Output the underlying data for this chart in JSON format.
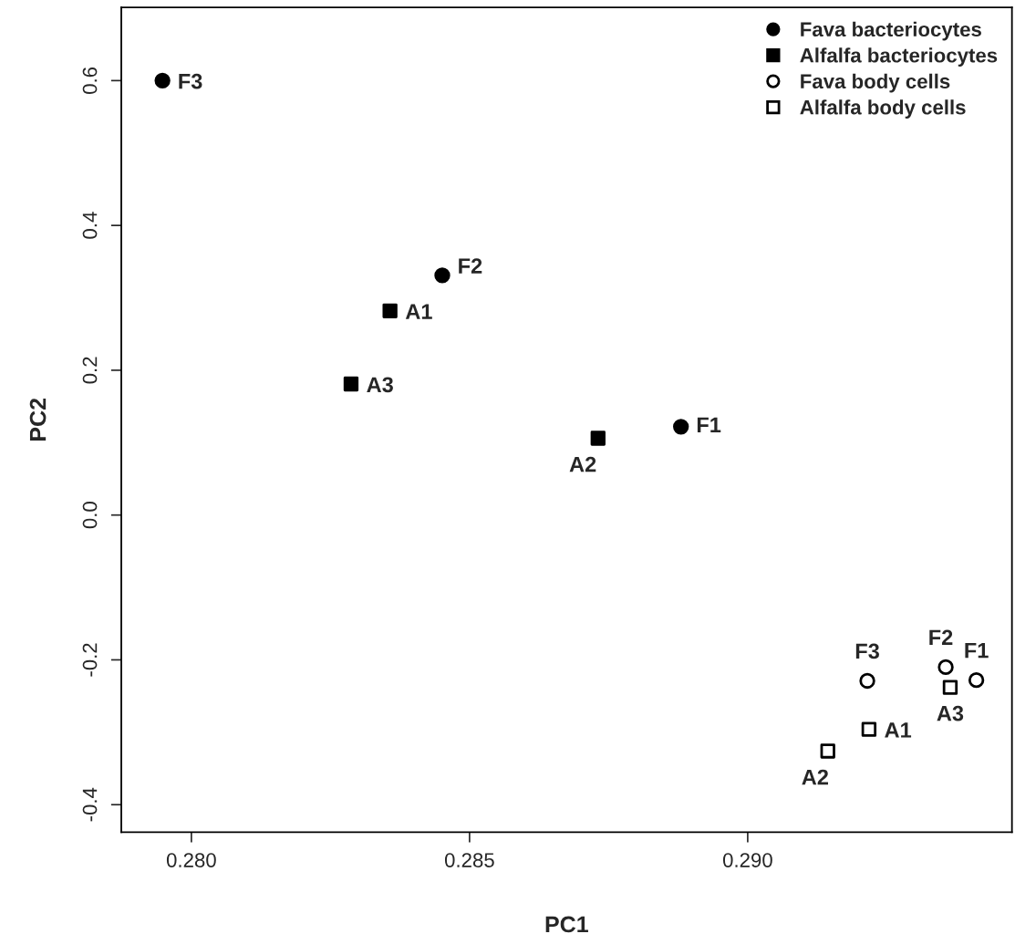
{
  "chart_data": {
    "type": "scatter",
    "xlabel": "PC1",
    "ylabel": "PC2",
    "xlim": [
      0.27874,
      0.29475
    ],
    "ylim": [
      -0.438,
      0.701
    ],
    "xticks": [
      {
        "value": 0.28,
        "label": "0.280"
      },
      {
        "value": 0.285,
        "label": "0.285"
      },
      {
        "value": 0.29,
        "label": "0.290"
      }
    ],
    "yticks": [
      -0.4,
      -0.2,
      {
        "value": 0,
        "label": "0.0"
      },
      0.2,
      0.4,
      0.6
    ],
    "grid": false,
    "legend": "top right",
    "series": [
      {
        "name": "Fava bacteriocytes",
        "color": "#000000",
        "marker": "circle",
        "x": [
          0.2888,
          0.28451,
          0.27948
        ],
        "values": [
          0.122,
          0.331,
          0.6
        ]
      },
      {
        "name": "Alfalfa bacteriocytes",
        "color": "#000000",
        "marker": "square",
        "x": [
          0.28357,
          0.28731,
          0.28287
        ],
        "values": [
          0.282,
          0.106,
          0.181
        ]
      },
      {
        "name": "Fava body cells",
        "color": "#000000",
        "marker": "circle",
        "x": [
          0.29411,
          0.29356,
          0.29215
        ],
        "values": [
          -0.228,
          -0.21,
          -0.229
        ]
      },
      {
        "name": "Alfalfa body cells",
        "color": "#000000",
        "marker": "square",
        "x": [
          0.29218,
          0.29144,
          0.29364
        ],
        "values": [
          -0.296,
          -0.326,
          -0.238
        ]
      }
    ],
    "annotations": [
      {
        "text": "F1",
        "x": 0.2888,
        "y": 0.122
      },
      {
        "text": "F2",
        "x": 0.28451,
        "y": 0.331
      },
      {
        "text": "F3",
        "x": 0.27948,
        "y": 0.6
      },
      {
        "text": "A1",
        "x": 0.28357,
        "y": 0.282
      },
      {
        "text": "A2",
        "x": 0.28731,
        "y": 0.106
      },
      {
        "text": "A3",
        "x": 0.28287,
        "y": 0.181
      },
      {
        "text": "F1",
        "x": 0.29411,
        "y": -0.228
      },
      {
        "text": "F2",
        "x": 0.29356,
        "y": -0.21
      },
      {
        "text": "F3",
        "x": 0.29215,
        "y": -0.229
      },
      {
        "text": "A1",
        "x": 0.29218,
        "y": -0.296
      },
      {
        "text": "A2",
        "x": 0.29144,
        "y": -0.326
      },
      {
        "text": "A3",
        "x": 0.29364,
        "y": -0.238
      }
    ]
  }
}
